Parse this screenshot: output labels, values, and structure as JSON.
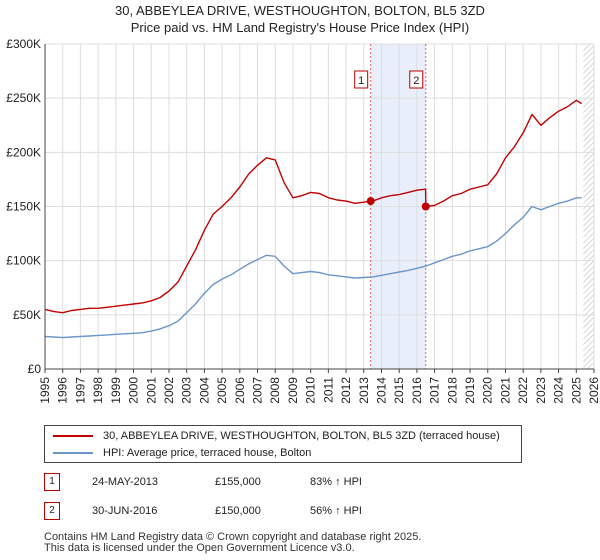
{
  "title_line1": "30, ABBEYLEA DRIVE, WESTHOUGHTON, BOLTON, BL5 3ZD",
  "title_line2": "Price paid vs. HM Land Registry's House Price Index (HPI)",
  "colors": {
    "property": "#c00000",
    "hpi": "#6a96c8",
    "marker_line": "#e06060",
    "band": "#e8eefa",
    "grid": "#dddddd",
    "hatch": "#bbbbbb"
  },
  "chart_data": {
    "type": "line",
    "x_unit": "year",
    "xlim": [
      1995,
      2026
    ],
    "ylim": [
      0,
      300000
    ],
    "x_ticks": [
      "1995",
      "1996",
      "1997",
      "1998",
      "1999",
      "2000",
      "2001",
      "2002",
      "2003",
      "2004",
      "2005",
      "2006",
      "2007",
      "2008",
      "2009",
      "2010",
      "2011",
      "2012",
      "2013",
      "2014",
      "2015",
      "2016",
      "2017",
      "2018",
      "2019",
      "2020",
      "2021",
      "2022",
      "2023",
      "2024",
      "2025",
      "2026"
    ],
    "y_ticks": [
      {
        "value": 0,
        "label": "£0"
      },
      {
        "value": 50000,
        "label": "£50K"
      },
      {
        "value": 100000,
        "label": "£100K"
      },
      {
        "value": 150000,
        "label": "£150K"
      },
      {
        "value": 200000,
        "label": "£200K"
      },
      {
        "value": 250000,
        "label": "£250K"
      },
      {
        "value": 300000,
        "label": "£300K"
      }
    ],
    "highlight_band": [
      2013.39,
      2016.5
    ],
    "future_hatch_from": 2025.4,
    "series": [
      {
        "name": "30, ABBEYLEA DRIVE, WESTHOUGHTON, BOLTON, BL5 3ZD (terraced house)",
        "x": [
          1995,
          1995.5,
          1996,
          1996.5,
          1997,
          1997.5,
          1998,
          1998.5,
          1999,
          1999.5,
          2000,
          2000.5,
          2001,
          2001.5,
          2002,
          2002.5,
          2003,
          2003.5,
          2004,
          2004.5,
          2005,
          2005.5,
          2006,
          2006.5,
          2007,
          2007.5,
          2008,
          2008.5,
          2009,
          2009.5,
          2010,
          2010.5,
          2011,
          2011.5,
          2012,
          2012.5,
          2013,
          2013.39,
          2013.5,
          2014,
          2014.5,
          2015,
          2015.5,
          2016,
          2016.49,
          2016.5,
          2017,
          2017.5,
          2018,
          2018.5,
          2019,
          2019.5,
          2020,
          2020.5,
          2021,
          2021.5,
          2022,
          2022.5,
          2023,
          2023.5,
          2024,
          2024.5,
          2025,
          2025.3
        ],
        "values": [
          55000,
          53000,
          52000,
          54000,
          55000,
          56000,
          56000,
          57000,
          58000,
          59000,
          60000,
          61000,
          63000,
          66000,
          72000,
          80000,
          95000,
          110000,
          128000,
          143000,
          150000,
          158000,
          168000,
          180000,
          188000,
          195000,
          193000,
          172000,
          158000,
          160000,
          163000,
          162000,
          158000,
          156000,
          155000,
          153000,
          154000,
          155000,
          155000,
          158000,
          160000,
          161000,
          163000,
          165000,
          166000,
          150000,
          151000,
          155000,
          160000,
          162000,
          166000,
          168000,
          170000,
          180000,
          195000,
          205000,
          218000,
          235000,
          225000,
          232000,
          238000,
          242000,
          248000,
          245000
        ]
      },
      {
        "name": "HPI: Average price, terraced house, Bolton",
        "x": [
          1995,
          1995.5,
          1996,
          1996.5,
          1997,
          1997.5,
          1998,
          1998.5,
          1999,
          1999.5,
          2000,
          2000.5,
          2001,
          2001.5,
          2002,
          2002.5,
          2003,
          2003.5,
          2004,
          2004.5,
          2005,
          2005.5,
          2006,
          2006.5,
          2007,
          2007.5,
          2008,
          2008.5,
          2009,
          2009.5,
          2010,
          2010.5,
          2011,
          2011.5,
          2012,
          2012.5,
          2013,
          2013.5,
          2014,
          2014.5,
          2015,
          2015.5,
          2016,
          2016.5,
          2017,
          2017.5,
          2018,
          2018.5,
          2019,
          2019.5,
          2020,
          2020.5,
          2021,
          2021.5,
          2022,
          2022.5,
          2023,
          2023.5,
          2024,
          2024.5,
          2025,
          2025.3
        ],
        "values": [
          30000,
          29500,
          29000,
          29500,
          30000,
          30500,
          31000,
          31500,
          32000,
          32500,
          33000,
          33500,
          35000,
          37000,
          40000,
          44000,
          52000,
          60000,
          70000,
          78000,
          83000,
          87000,
          92000,
          97000,
          101000,
          105000,
          104000,
          95000,
          88000,
          89000,
          90000,
          89000,
          87000,
          86000,
          85000,
          84000,
          84500,
          85000,
          86500,
          88000,
          89500,
          91000,
          93000,
          95000,
          98000,
          101000,
          104000,
          106000,
          109000,
          111000,
          113000,
          118000,
          125000,
          133000,
          140000,
          150000,
          147000,
          150000,
          153000,
          155000,
          158000,
          158000
        ]
      }
    ],
    "markers": [
      {
        "id": "1",
        "x": 2013.39,
        "value": 155000
      },
      {
        "id": "2",
        "x": 2016.5,
        "value": 150000
      }
    ]
  },
  "legend": {
    "property": "30, ABBEYLEA DRIVE, WESTHOUGHTON, BOLTON, BL5 3ZD (terraced house)",
    "hpi": "HPI: Average price, terraced house, Bolton"
  },
  "transactions": [
    {
      "id": "1",
      "date": "24-MAY-2013",
      "price": "£155,000",
      "hpi": "83% ↑ HPI"
    },
    {
      "id": "2",
      "date": "30-JUN-2016",
      "price": "£150,000",
      "hpi": "56% ↑ HPI"
    }
  ],
  "footer_line1": "Contains HM Land Registry data © Crown copyright and database right 2025.",
  "footer_line2": "This data is licensed under the Open Government Licence v3.0."
}
